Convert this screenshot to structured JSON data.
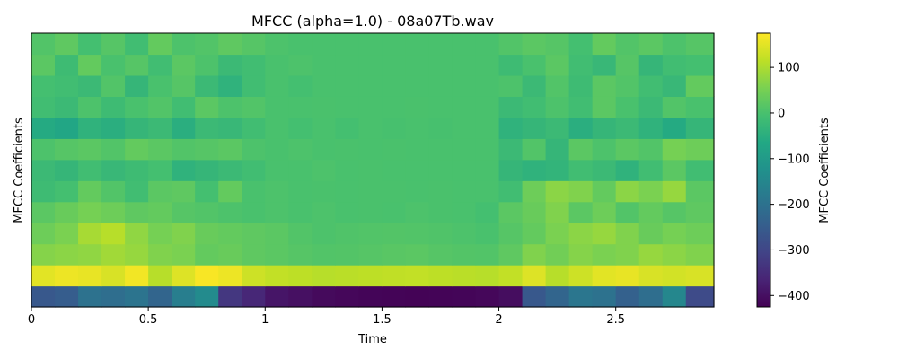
{
  "chart_data": {
    "type": "heatmap",
    "title": "MFCC (alpha=1.0) - 08a07Tb.wav",
    "xlabel": "Time",
    "ylabel": "MFCC Coefficients",
    "colorbar_label": "MFCC Coefficients",
    "colormap": "viridis",
    "xlim": [
      0,
      2.92
    ],
    "value_range": [
      -425,
      175
    ],
    "x_ticks": [
      {
        "value": 0,
        "label": "0"
      },
      {
        "value": 0.5,
        "label": "0.5"
      },
      {
        "value": 1,
        "label": "1"
      },
      {
        "value": 1.5,
        "label": "1.5"
      },
      {
        "value": 2,
        "label": "2"
      },
      {
        "value": 2.5,
        "label": "2.5"
      }
    ],
    "colorbar_ticks": [
      {
        "value": 100,
        "label": "100"
      },
      {
        "value": 0,
        "label": "0"
      },
      {
        "value": -100,
        "label": "−100"
      },
      {
        "value": -200,
        "label": "−200"
      },
      {
        "value": -300,
        "label": "−300"
      },
      {
        "value": -400,
        "label": "−400"
      }
    ],
    "x_segment_edges": [
      0,
      0.1,
      0.2,
      0.3,
      0.4,
      0.5,
      0.6,
      0.7,
      0.8,
      0.9,
      1.0,
      1.1,
      1.2,
      1.3,
      1.4,
      1.5,
      1.6,
      1.7,
      1.8,
      1.9,
      2.0,
      2.1,
      2.2,
      2.3,
      2.4,
      2.5,
      2.6,
      2.7,
      2.8,
      2.92
    ],
    "rows_bottom_to_top": [
      [
        -260,
        -250,
        -200,
        -210,
        -195,
        -230,
        -170,
        -140,
        -330,
        -360,
        -390,
        -400,
        -410,
        -415,
        -418,
        -420,
        -422,
        -420,
        -418,
        -415,
        -405,
        -260,
        -230,
        -190,
        -200,
        -240,
        -210,
        -150,
        -290
      ],
      [
        150,
        160,
        155,
        140,
        165,
        110,
        145,
        170,
        160,
        130,
        120,
        115,
        110,
        112,
        115,
        118,
        120,
        115,
        112,
        110,
        120,
        145,
        110,
        130,
        150,
        155,
        140,
        135,
        140
      ],
      [
        65,
        70,
        75,
        90,
        80,
        60,
        55,
        30,
        35,
        25,
        20,
        15,
        10,
        12,
        15,
        18,
        20,
        15,
        12,
        10,
        25,
        60,
        45,
        65,
        55,
        60,
        80,
        70,
        60
      ],
      [
        40,
        55,
        95,
        110,
        75,
        50,
        60,
        35,
        30,
        25,
        20,
        10,
        5,
        8,
        10,
        12,
        10,
        8,
        5,
        0,
        15,
        30,
        55,
        70,
        80,
        60,
        35,
        50,
        40
      ],
      [
        20,
        35,
        50,
        40,
        25,
        30,
        15,
        10,
        5,
        0,
        5,
        0,
        5,
        0,
        2,
        0,
        5,
        2,
        0,
        -5,
        20,
        35,
        60,
        20,
        40,
        10,
        30,
        15,
        25
      ],
      [
        -15,
        -5,
        30,
        10,
        -10,
        20,
        25,
        -5,
        30,
        0,
        5,
        0,
        2,
        0,
        2,
        2,
        0,
        2,
        0,
        0,
        -10,
        40,
        70,
        60,
        30,
        70,
        55,
        80,
        20
      ],
      [
        -20,
        -30,
        -10,
        -25,
        -15,
        -5,
        -40,
        -30,
        -20,
        -10,
        0,
        0,
        5,
        0,
        2,
        0,
        0,
        0,
        0,
        0,
        -30,
        -40,
        -35,
        -10,
        -20,
        -40,
        -10,
        20,
        -10
      ],
      [
        5,
        15,
        20,
        10,
        30,
        20,
        10,
        15,
        20,
        5,
        0,
        5,
        0,
        2,
        0,
        2,
        0,
        0,
        0,
        0,
        -20,
        10,
        -30,
        20,
        5,
        20,
        10,
        50,
        40
      ],
      [
        -60,
        -70,
        -40,
        -50,
        -30,
        -20,
        -50,
        -20,
        -25,
        -10,
        0,
        -5,
        0,
        -5,
        0,
        -2,
        0,
        -2,
        0,
        0,
        -40,
        -30,
        -20,
        -50,
        -30,
        -20,
        -40,
        -60,
        -30
      ],
      [
        -10,
        -20,
        5,
        -15,
        0,
        10,
        -10,
        20,
        5,
        10,
        0,
        0,
        2,
        0,
        0,
        0,
        2,
        0,
        0,
        0,
        -20,
        -10,
        5,
        -10,
        20,
        0,
        -20,
        10,
        0
      ],
      [
        -5,
        -10,
        -20,
        10,
        -30,
        0,
        15,
        -20,
        -40,
        -10,
        0,
        -5,
        0,
        0,
        0,
        0,
        0,
        0,
        0,
        0,
        5,
        -20,
        10,
        -15,
        20,
        10,
        -10,
        -25,
        30
      ],
      [
        20,
        -15,
        30,
        0,
        15,
        -10,
        20,
        5,
        -20,
        -10,
        0,
        5,
        0,
        0,
        0,
        0,
        0,
        0,
        0,
        0,
        -15,
        0,
        20,
        -10,
        -25,
        15,
        -30,
        -10,
        -5
      ],
      [
        10,
        25,
        -5,
        15,
        -10,
        30,
        5,
        10,
        25,
        15,
        5,
        0,
        0,
        0,
        0,
        0,
        0,
        0,
        0,
        0,
        10,
        20,
        15,
        -5,
        30,
        10,
        20,
        5,
        15
      ]
    ]
  }
}
